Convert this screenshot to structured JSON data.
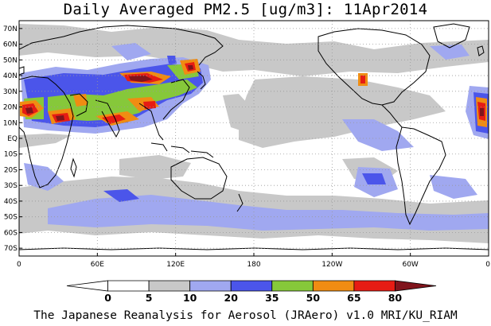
{
  "title": "Daily Averaged PM2.5 [ug/m3]: 11Apr2014",
  "credit": "The Japanese Reanalysis for Aerosol (JRAero) v1.0 MRI/KU_RIAM",
  "map": {
    "lat_labels": [
      "70N",
      "60N",
      "50N",
      "40N",
      "30N",
      "20N",
      "10N",
      "EQ",
      "10S",
      "20S",
      "30S",
      "40S",
      "50S",
      "60S",
      "70S"
    ],
    "lat_values": [
      70,
      60,
      50,
      40,
      30,
      20,
      10,
      0,
      -10,
      -20,
      -30,
      -40,
      -50,
      -60,
      -70
    ],
    "lon_labels": [
      "0",
      "60E",
      "120E",
      "180",
      "120W",
      "60W",
      "0"
    ],
    "lon_values": [
      0,
      60,
      120,
      180,
      240,
      300,
      360
    ],
    "lon_range": [
      0,
      360
    ],
    "lat_range": [
      -75,
      75
    ],
    "gridlines": "dotted"
  },
  "colorbar": {
    "levels": [
      "0",
      "5",
      "10",
      "20",
      "35",
      "50",
      "65",
      "80"
    ],
    "colors": [
      "#ffffff",
      "#ffffff",
      "#c8c8c8",
      "#a0a8f0",
      "#4b55ea",
      "#86c83a",
      "#f08c12",
      "#e61c14",
      "#80141c"
    ]
  }
}
